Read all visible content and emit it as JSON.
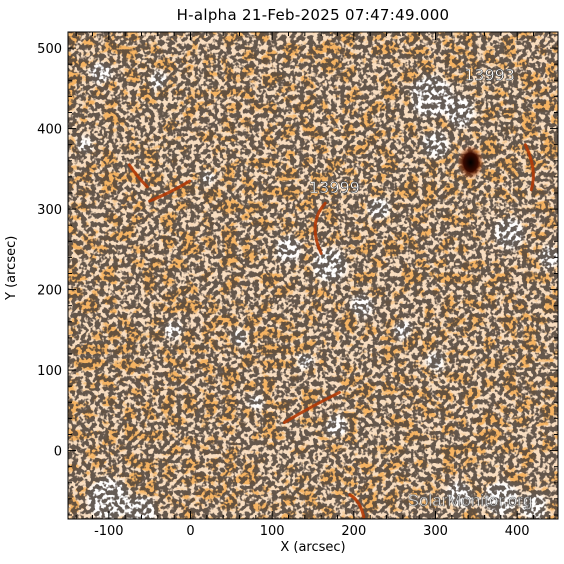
{
  "title": "H-alpha 21-Feb-2025 07:47:49.000",
  "axes": {
    "xlabel": "X (arcsec)",
    "ylabel": "Y (arcsec)",
    "xlim": [
      -150,
      450
    ],
    "ylim": [
      -85,
      520
    ],
    "xticks": [
      {
        "value": -100,
        "label": "-100"
      },
      {
        "value": 0,
        "label": "0"
      },
      {
        "value": 100,
        "label": "100"
      },
      {
        "value": 200,
        "label": "200"
      },
      {
        "value": 300,
        "label": "300"
      },
      {
        "value": 400,
        "label": "400"
      }
    ],
    "yticks": [
      {
        "value": 0,
        "label": "0"
      },
      {
        "value": 100,
        "label": "100"
      },
      {
        "value": 200,
        "label": "200"
      },
      {
        "value": 300,
        "label": "300"
      },
      {
        "value": 400,
        "label": "400"
      },
      {
        "value": 500,
        "label": "500"
      }
    ]
  },
  "regions": [
    {
      "label": "13993",
      "x": 335,
      "y": 460
    },
    {
      "label": "13999",
      "x": 145,
      "y": 320
    }
  ],
  "watermark": "SolarMonitor.org",
  "colors": {
    "background": "#ffffff",
    "chromosphere_light": "#f8ddc0",
    "chromosphere_mid": "#f09a4e",
    "chromosphere_orange": "#e8721e",
    "dark_fibril": "#111111",
    "filament": "#b33a05",
    "sunspot": "#1a0500",
    "plage": "#ffffff"
  }
}
